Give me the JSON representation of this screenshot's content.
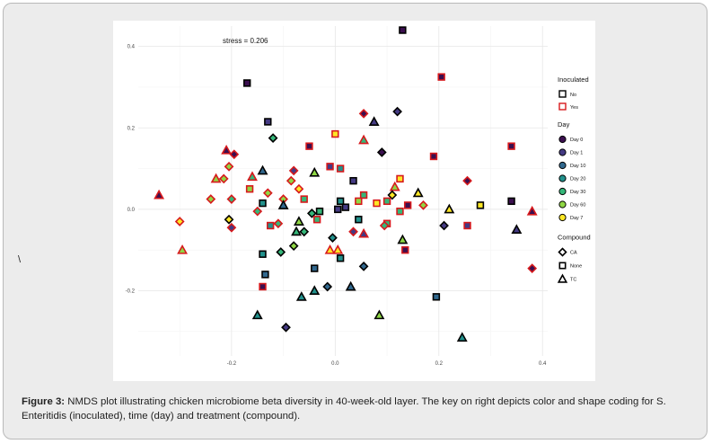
{
  "figure": {
    "caption_label": "Figure 3:",
    "caption_text": " NMDS plot illustrating chicken microbiome beta diversity in 40-week-old layer. The key on right depicts color and shape coding for S. Enteritidis (inoculated), time (day) and treatment (compound).",
    "stray_char": "\\"
  },
  "chart_data": {
    "type": "scatter",
    "annotation": "stress = 0.206",
    "xlim": [
      -0.38,
      0.41
    ],
    "ylim": [
      -0.36,
      0.45
    ],
    "x_ticks": [
      -0.2,
      0.0,
      0.2,
      0.4
    ],
    "x_tick_labels": [
      "-0.2",
      "0.0",
      "0.2",
      "0.4"
    ],
    "y_ticks": [
      -0.2,
      0.0,
      0.2,
      0.4
    ],
    "y_tick_labels": [
      "-0.2",
      "0.0",
      "0.2",
      "0.4"
    ],
    "grid": true,
    "legend_placement": "right",
    "legend": {
      "inoculated": {
        "title": "Inoculated",
        "items": [
          {
            "label": "No",
            "stroke": "#000000"
          },
          {
            "label": "Yes",
            "stroke": "#d7191c"
          }
        ]
      },
      "day": {
        "title": "Day",
        "items": [
          {
            "label": "Day 0",
            "color": "#3b0f4f"
          },
          {
            "label": "Day 1",
            "color": "#443a83"
          },
          {
            "label": "Day 10",
            "color": "#31688e"
          },
          {
            "label": "Day 20",
            "color": "#21918c"
          },
          {
            "label": "Day 30",
            "color": "#35b779"
          },
          {
            "label": "Day 60",
            "color": "#8fd744"
          },
          {
            "label": "Day 7",
            "color": "#fde725"
          }
        ]
      },
      "compound": {
        "title": "Compound",
        "items": [
          {
            "label": "CA",
            "shape": "diamond"
          },
          {
            "label": "None",
            "shape": "square"
          },
          {
            "label": "TC",
            "shape": "triangle"
          }
        ]
      }
    },
    "points": [
      {
        "x": 0.13,
        "y": 0.44,
        "shape": "square",
        "day": "Day 0",
        "inoc": "No"
      },
      {
        "x": -0.17,
        "y": 0.31,
        "shape": "square",
        "day": "Day 0",
        "inoc": "No"
      },
      {
        "x": 0.205,
        "y": 0.325,
        "shape": "square",
        "day": "Day 0",
        "inoc": "Yes"
      },
      {
        "x": 0.12,
        "y": 0.24,
        "shape": "diamond",
        "day": "Day 1",
        "inoc": "No"
      },
      {
        "x": -0.13,
        "y": 0.215,
        "shape": "square",
        "day": "Day 1",
        "inoc": "No"
      },
      {
        "x": 0.055,
        "y": 0.235,
        "shape": "diamond",
        "day": "Day 0",
        "inoc": "Yes"
      },
      {
        "x": 0.075,
        "y": 0.215,
        "shape": "triangle",
        "day": "Day 1",
        "inoc": "No"
      },
      {
        "x": -0.12,
        "y": 0.175,
        "shape": "diamond",
        "day": "Day 30",
        "inoc": "No"
      },
      {
        "x": 0.0,
        "y": 0.185,
        "shape": "square",
        "day": "Day 7",
        "inoc": "Yes"
      },
      {
        "x": 0.055,
        "y": 0.17,
        "shape": "triangle",
        "day": "Day 30",
        "inoc": "Yes"
      },
      {
        "x": -0.05,
        "y": 0.155,
        "shape": "square",
        "day": "Day 0",
        "inoc": "Yes"
      },
      {
        "x": 0.34,
        "y": 0.155,
        "shape": "square",
        "day": "Day 0",
        "inoc": "Yes"
      },
      {
        "x": -0.21,
        "y": 0.145,
        "shape": "triangle",
        "day": "Day 0",
        "inoc": "Yes"
      },
      {
        "x": -0.195,
        "y": 0.135,
        "shape": "diamond",
        "day": "Day 0",
        "inoc": "Yes"
      },
      {
        "x": 0.09,
        "y": 0.14,
        "shape": "diamond",
        "day": "Day 0",
        "inoc": "No"
      },
      {
        "x": 0.19,
        "y": 0.13,
        "shape": "square",
        "day": "Day 0",
        "inoc": "Yes"
      },
      {
        "x": -0.205,
        "y": 0.105,
        "shape": "diamond",
        "day": "Day 60",
        "inoc": "Yes"
      },
      {
        "x": -0.01,
        "y": 0.105,
        "shape": "square",
        "day": "Day 1",
        "inoc": "Yes"
      },
      {
        "x": 0.01,
        "y": 0.1,
        "shape": "square",
        "day": "Day 20",
        "inoc": "Yes"
      },
      {
        "x": -0.08,
        "y": 0.095,
        "shape": "diamond",
        "day": "Day 1",
        "inoc": "Yes"
      },
      {
        "x": -0.14,
        "y": 0.095,
        "shape": "triangle",
        "day": "Day 10",
        "inoc": "No"
      },
      {
        "x": -0.04,
        "y": 0.09,
        "shape": "triangle",
        "day": "Day 60",
        "inoc": "No"
      },
      {
        "x": -0.215,
        "y": 0.075,
        "shape": "diamond",
        "day": "Day 60",
        "inoc": "Yes"
      },
      {
        "x": -0.23,
        "y": 0.075,
        "shape": "triangle",
        "day": "Day 60",
        "inoc": "Yes"
      },
      {
        "x": -0.16,
        "y": 0.08,
        "shape": "triangle",
        "day": "Day 30",
        "inoc": "Yes"
      },
      {
        "x": -0.085,
        "y": 0.07,
        "shape": "diamond",
        "day": "Day 60",
        "inoc": "Yes"
      },
      {
        "x": 0.035,
        "y": 0.07,
        "shape": "square",
        "day": "Day 1",
        "inoc": "No"
      },
      {
        "x": 0.125,
        "y": 0.075,
        "shape": "square",
        "day": "Day 7",
        "inoc": "Yes"
      },
      {
        "x": 0.255,
        "y": 0.07,
        "shape": "diamond",
        "day": "Day 0",
        "inoc": "Yes"
      },
      {
        "x": 0.115,
        "y": 0.055,
        "shape": "triangle",
        "day": "Day 60",
        "inoc": "Yes"
      },
      {
        "x": -0.07,
        "y": 0.05,
        "shape": "diamond",
        "day": "Day 7",
        "inoc": "Yes"
      },
      {
        "x": -0.165,
        "y": 0.05,
        "shape": "square",
        "day": "Day 60",
        "inoc": "Yes"
      },
      {
        "x": -0.13,
        "y": 0.04,
        "shape": "diamond",
        "day": "Day 60",
        "inoc": "Yes"
      },
      {
        "x": 0.16,
        "y": 0.04,
        "shape": "triangle",
        "day": "Day 7",
        "inoc": "No"
      },
      {
        "x": 0.055,
        "y": 0.035,
        "shape": "square",
        "day": "Day 30",
        "inoc": "Yes"
      },
      {
        "x": -0.34,
        "y": 0.035,
        "shape": "triangle",
        "day": "Day 0",
        "inoc": "Yes"
      },
      {
        "x": 0.11,
        "y": 0.035,
        "shape": "diamond",
        "day": "Day 7",
        "inoc": "No"
      },
      {
        "x": -0.2,
        "y": 0.025,
        "shape": "diamond",
        "day": "Day 30",
        "inoc": "Yes"
      },
      {
        "x": -0.24,
        "y": 0.025,
        "shape": "diamond",
        "day": "Day 60",
        "inoc": "Yes"
      },
      {
        "x": -0.06,
        "y": 0.025,
        "shape": "square",
        "day": "Day 30",
        "inoc": "Yes"
      },
      {
        "x": -0.1,
        "y": 0.025,
        "shape": "diamond",
        "day": "Day 60",
        "inoc": "Yes"
      },
      {
        "x": 0.01,
        "y": 0.02,
        "shape": "square",
        "day": "Day 20",
        "inoc": "No"
      },
      {
        "x": -0.14,
        "y": 0.015,
        "shape": "square",
        "day": "Day 20",
        "inoc": "No"
      },
      {
        "x": 0.045,
        "y": 0.02,
        "shape": "square",
        "day": "Day 60",
        "inoc": "Yes"
      },
      {
        "x": 0.1,
        "y": 0.02,
        "shape": "square",
        "day": "Day 30",
        "inoc": "Yes"
      },
      {
        "x": 0.08,
        "y": 0.015,
        "shape": "square",
        "day": "Day 7",
        "inoc": "Yes"
      },
      {
        "x": 0.14,
        "y": 0.01,
        "shape": "square",
        "day": "Day 0",
        "inoc": "Yes"
      },
      {
        "x": 0.28,
        "y": 0.01,
        "shape": "square",
        "day": "Day 7",
        "inoc": "No"
      },
      {
        "x": 0.34,
        "y": 0.02,
        "shape": "square",
        "day": "Day 0",
        "inoc": "No"
      },
      {
        "x": 0.17,
        "y": 0.01,
        "shape": "diamond",
        "day": "Day 60",
        "inoc": "Yes"
      },
      {
        "x": -0.1,
        "y": 0.01,
        "shape": "triangle",
        "day": "Day 10",
        "inoc": "No"
      },
      {
        "x": 0.02,
        "y": 0.005,
        "shape": "square",
        "day": "Day 1",
        "inoc": "No"
      },
      {
        "x": 0.005,
        "y": 0.0,
        "shape": "square",
        "day": "Day 1",
        "inoc": "No"
      },
      {
        "x": 0.22,
        "y": 0.0,
        "shape": "triangle",
        "day": "Day 7",
        "inoc": "No"
      },
      {
        "x": 0.38,
        "y": -0.005,
        "shape": "triangle",
        "day": "Day 0",
        "inoc": "Yes"
      },
      {
        "x": -0.15,
        "y": -0.005,
        "shape": "diamond",
        "day": "Day 30",
        "inoc": "Yes"
      },
      {
        "x": -0.045,
        "y": -0.01,
        "shape": "diamond",
        "day": "Day 30",
        "inoc": "No"
      },
      {
        "x": 0.125,
        "y": -0.005,
        "shape": "square",
        "day": "Day 30",
        "inoc": "Yes"
      },
      {
        "x": -0.03,
        "y": -0.005,
        "shape": "square",
        "day": "Day 30",
        "inoc": "No"
      },
      {
        "x": 0.045,
        "y": -0.025,
        "shape": "square",
        "day": "Day 20",
        "inoc": "No"
      },
      {
        "x": -0.035,
        "y": -0.025,
        "shape": "square",
        "day": "Day 30",
        "inoc": "Yes"
      },
      {
        "x": -0.205,
        "y": -0.025,
        "shape": "diamond",
        "day": "Day 7",
        "inoc": "No"
      },
      {
        "x": -0.3,
        "y": -0.03,
        "shape": "diamond",
        "day": "Day 7",
        "inoc": "Yes"
      },
      {
        "x": 0.1,
        "y": -0.035,
        "shape": "square",
        "day": "Day 30",
        "inoc": "Yes"
      },
      {
        "x": 0.095,
        "y": -0.04,
        "shape": "diamond",
        "day": "Day 30",
        "inoc": "Yes"
      },
      {
        "x": -0.11,
        "y": -0.035,
        "shape": "diamond",
        "day": "Day 30",
        "inoc": "Yes"
      },
      {
        "x": -0.07,
        "y": -0.03,
        "shape": "triangle",
        "day": "Day 60",
        "inoc": "No"
      },
      {
        "x": -0.125,
        "y": -0.04,
        "shape": "square",
        "day": "Day 20",
        "inoc": "Yes"
      },
      {
        "x": 0.21,
        "y": -0.04,
        "shape": "diamond",
        "day": "Day 1",
        "inoc": "No"
      },
      {
        "x": 0.255,
        "y": -0.04,
        "shape": "square",
        "day": "Day 1",
        "inoc": "Yes"
      },
      {
        "x": -0.2,
        "y": -0.045,
        "shape": "diamond",
        "day": "Day 1",
        "inoc": "Yes"
      },
      {
        "x": 0.035,
        "y": -0.055,
        "shape": "diamond",
        "day": "Day 1",
        "inoc": "Yes"
      },
      {
        "x": 0.055,
        "y": -0.06,
        "shape": "triangle",
        "day": "Day 1",
        "inoc": "Yes"
      },
      {
        "x": -0.075,
        "y": -0.055,
        "shape": "triangle",
        "day": "Day 30",
        "inoc": "No"
      },
      {
        "x": -0.06,
        "y": -0.055,
        "shape": "diamond",
        "day": "Day 30",
        "inoc": "No"
      },
      {
        "x": 0.35,
        "y": -0.05,
        "shape": "triangle",
        "day": "Day 1",
        "inoc": "No"
      },
      {
        "x": -0.005,
        "y": -0.07,
        "shape": "diamond",
        "day": "Day 20",
        "inoc": "No"
      },
      {
        "x": 0.13,
        "y": -0.075,
        "shape": "triangle",
        "day": "Day 60",
        "inoc": "No"
      },
      {
        "x": -0.08,
        "y": -0.09,
        "shape": "diamond",
        "day": "Day 60",
        "inoc": "No"
      },
      {
        "x": -0.295,
        "y": -0.1,
        "shape": "triangle",
        "day": "Day 60",
        "inoc": "Yes"
      },
      {
        "x": -0.01,
        "y": -0.1,
        "shape": "triangle",
        "day": "Day 7",
        "inoc": "Yes"
      },
      {
        "x": 0.005,
        "y": -0.1,
        "shape": "triangle",
        "day": "Day 7",
        "inoc": "Yes"
      },
      {
        "x": 0.135,
        "y": -0.1,
        "shape": "square",
        "day": "Day 0",
        "inoc": "Yes"
      },
      {
        "x": -0.105,
        "y": -0.105,
        "shape": "diamond",
        "day": "Day 30",
        "inoc": "No"
      },
      {
        "x": -0.14,
        "y": -0.11,
        "shape": "square",
        "day": "Day 20",
        "inoc": "No"
      },
      {
        "x": 0.01,
        "y": -0.12,
        "shape": "square",
        "day": "Day 20",
        "inoc": "No"
      },
      {
        "x": 0.055,
        "y": -0.14,
        "shape": "diamond",
        "day": "Day 10",
        "inoc": "No"
      },
      {
        "x": -0.04,
        "y": -0.145,
        "shape": "square",
        "day": "Day 10",
        "inoc": "No"
      },
      {
        "x": 0.38,
        "y": -0.145,
        "shape": "diamond",
        "day": "Day 0",
        "inoc": "Yes"
      },
      {
        "x": -0.135,
        "y": -0.16,
        "shape": "square",
        "day": "Day 10",
        "inoc": "No"
      },
      {
        "x": -0.015,
        "y": -0.19,
        "shape": "diamond",
        "day": "Day 10",
        "inoc": "No"
      },
      {
        "x": 0.03,
        "y": -0.19,
        "shape": "triangle",
        "day": "Day 10",
        "inoc": "No"
      },
      {
        "x": -0.14,
        "y": -0.19,
        "shape": "square",
        "day": "Day 0",
        "inoc": "Yes"
      },
      {
        "x": -0.04,
        "y": -0.2,
        "shape": "triangle",
        "day": "Day 20",
        "inoc": "No"
      },
      {
        "x": 0.195,
        "y": -0.215,
        "shape": "square",
        "day": "Day 10",
        "inoc": "No"
      },
      {
        "x": -0.065,
        "y": -0.215,
        "shape": "triangle",
        "day": "Day 20",
        "inoc": "No"
      },
      {
        "x": -0.15,
        "y": -0.26,
        "shape": "triangle",
        "day": "Day 20",
        "inoc": "No"
      },
      {
        "x": 0.085,
        "y": -0.26,
        "shape": "triangle",
        "day": "Day 60",
        "inoc": "No"
      },
      {
        "x": -0.095,
        "y": -0.29,
        "shape": "diamond",
        "day": "Day 1",
        "inoc": "No"
      },
      {
        "x": 0.245,
        "y": -0.315,
        "shape": "triangle",
        "day": "Day 20",
        "inoc": "No"
      }
    ]
  }
}
